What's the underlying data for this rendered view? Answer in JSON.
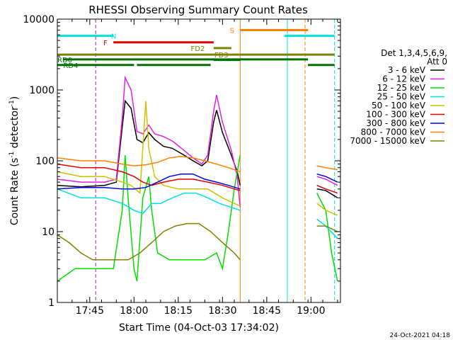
{
  "chart_data": {
    "type": "line",
    "title": "RHESSI Observing Summary Count Rates",
    "xlabel": "Start Time (04-Oct-03 17:34:02)",
    "ylabel": "Count Rate (s⁻¹ detector⁻¹)",
    "ylabel_parts": [
      "Count Rate (s",
      "-1",
      " detector",
      "-1",
      ")"
    ],
    "y_scale": "log",
    "ylim": [
      1,
      10000
    ],
    "xlim": [
      "17:34",
      "19:10"
    ],
    "x_ticks": [
      "17:45",
      "18:00",
      "18:15",
      "18:30",
      "18:45",
      "19:00"
    ],
    "y_ticks": [
      "1",
      "10",
      "100",
      "1000",
      "10000"
    ],
    "timestamp": "24-Oct-2021 04:18",
    "legend_position": "right",
    "legend_header": [
      "Det 1,3,4,5,6,9,",
      "Att 0"
    ],
    "series": [
      {
        "name": "3 - 6 keV",
        "color": "#000000",
        "points": [
          [
            "17:34",
            45
          ],
          [
            "17:42",
            43
          ],
          [
            "17:50",
            45
          ],
          [
            "17:54",
            50
          ],
          [
            "17:56",
            300
          ],
          [
            "17:57",
            700
          ],
          [
            "17:59",
            550
          ],
          [
            "18:01",
            200
          ],
          [
            "18:03",
            180
          ],
          [
            "18:05",
            250
          ],
          [
            "18:07",
            200
          ],
          [
            "18:10",
            160
          ],
          [
            "18:13",
            150
          ],
          [
            "18:17",
            120
          ],
          [
            "18:20",
            100
          ],
          [
            "18:23",
            85
          ],
          [
            "18:25",
            100
          ],
          [
            "18:27",
            350
          ],
          [
            "18:28",
            520
          ],
          [
            "18:30",
            250
          ],
          [
            "18:33",
            120
          ],
          [
            "18:35",
            70
          ],
          [
            "18:36",
            45
          ]
        ],
        "points2": [
          [
            "19:02",
            40
          ],
          [
            "19:05",
            38
          ],
          [
            "19:09",
            30
          ]
        ]
      },
      {
        "name": "6 - 12 keV",
        "color": "#e020e0",
        "points": [
          [
            "17:34",
            55
          ],
          [
            "17:42",
            50
          ],
          [
            "17:50",
            50
          ],
          [
            "17:54",
            55
          ],
          [
            "17:56",
            400
          ],
          [
            "17:57",
            1500
          ],
          [
            "17:59",
            1000
          ],
          [
            "18:01",
            260
          ],
          [
            "18:03",
            240
          ],
          [
            "18:05",
            320
          ],
          [
            "18:07",
            240
          ],
          [
            "18:10",
            220
          ],
          [
            "18:13",
            190
          ],
          [
            "18:17",
            140
          ],
          [
            "18:20",
            110
          ],
          [
            "18:23",
            90
          ],
          [
            "18:25",
            120
          ],
          [
            "18:27",
            500
          ],
          [
            "18:28",
            850
          ],
          [
            "18:30",
            350
          ],
          [
            "18:33",
            140
          ],
          [
            "18:35",
            60
          ],
          [
            "18:36",
            22
          ]
        ],
        "points2": [
          [
            "19:02",
            60
          ],
          [
            "19:05",
            55
          ],
          [
            "19:09",
            45
          ]
        ]
      },
      {
        "name": "12 - 25 keV",
        "color": "#00e000",
        "points": [
          [
            "17:34",
            2
          ],
          [
            "17:40",
            3
          ],
          [
            "17:46",
            3
          ],
          [
            "17:50",
            3
          ],
          [
            "17:53",
            3
          ],
          [
            "17:56",
            20
          ],
          [
            "17:57",
            120
          ],
          [
            "17:58",
            30
          ],
          [
            "18:00",
            3
          ],
          [
            "18:01",
            2
          ],
          [
            "18:03",
            30
          ],
          [
            "18:05",
            60
          ],
          [
            "18:06",
            20
          ],
          [
            "18:08",
            5
          ],
          [
            "18:12",
            4
          ],
          [
            "18:18",
            4
          ],
          [
            "18:24",
            4
          ],
          [
            "18:28",
            5
          ],
          [
            "18:30",
            3
          ],
          [
            "18:32",
            10
          ],
          [
            "18:34",
            40
          ],
          [
            "18:36",
            120
          ]
        ],
        "points2": [
          [
            "19:02",
            35
          ],
          [
            "19:05",
            20
          ],
          [
            "19:07",
            5
          ],
          [
            "19:09",
            2
          ]
        ]
      },
      {
        "name": "25 - 50 keV",
        "color": "#00e0e0",
        "points": [
          [
            "17:34",
            40
          ],
          [
            "17:42",
            30
          ],
          [
            "17:50",
            30
          ],
          [
            "17:56",
            25
          ],
          [
            "18:00",
            20
          ],
          [
            "18:03",
            18
          ],
          [
            "18:06",
            25
          ],
          [
            "18:09",
            25
          ],
          [
            "18:13",
            30
          ],
          [
            "18:17",
            35
          ],
          [
            "18:21",
            35
          ],
          [
            "18:25",
            30
          ],
          [
            "18:29",
            25
          ],
          [
            "18:33",
            22
          ],
          [
            "18:36",
            20
          ]
        ],
        "points2": [
          [
            "19:02",
            15
          ],
          [
            "19:05",
            12
          ],
          [
            "19:09",
            8
          ]
        ]
      },
      {
        "name": "50 - 100 keV",
        "color": "#d0c000",
        "points": [
          [
            "17:34",
            70
          ],
          [
            "17:42",
            60
          ],
          [
            "17:50",
            60
          ],
          [
            "17:56",
            50
          ],
          [
            "17:59",
            45
          ],
          [
            "18:02",
            35
          ],
          [
            "18:04",
            700
          ],
          [
            "18:05",
            150
          ],
          [
            "18:07",
            60
          ],
          [
            "18:10",
            45
          ],
          [
            "18:15",
            40
          ],
          [
            "18:20",
            40
          ],
          [
            "18:25",
            40
          ],
          [
            "18:30",
            30
          ],
          [
            "18:34",
            25
          ],
          [
            "18:36",
            23
          ]
        ],
        "points2": [
          [
            "19:02",
            25
          ],
          [
            "19:05",
            20
          ],
          [
            "19:09",
            17
          ]
        ]
      },
      {
        "name": "100 - 300 keV",
        "color": "#e00000",
        "points": [
          [
            "17:34",
            90
          ],
          [
            "17:42",
            80
          ],
          [
            "17:50",
            80
          ],
          [
            "17:56",
            70
          ],
          [
            "18:00",
            60
          ],
          [
            "18:03",
            50
          ],
          [
            "18:06",
            45
          ],
          [
            "18:10",
            50
          ],
          [
            "18:15",
            55
          ],
          [
            "18:20",
            55
          ],
          [
            "18:25",
            50
          ],
          [
            "18:30",
            45
          ],
          [
            "18:34",
            40
          ],
          [
            "18:36",
            38
          ]
        ],
        "points2": [
          [
            "19:02",
            45
          ],
          [
            "19:05",
            40
          ],
          [
            "19:09",
            35
          ]
        ]
      },
      {
        "name": "300 - 800 keV",
        "color": "#0000e0",
        "points": [
          [
            "17:34",
            40
          ],
          [
            "17:42",
            42
          ],
          [
            "17:50",
            42
          ],
          [
            "17:56",
            40
          ],
          [
            "18:00",
            40
          ],
          [
            "18:04",
            42
          ],
          [
            "18:08",
            50
          ],
          [
            "18:12",
            60
          ],
          [
            "18:16",
            65
          ],
          [
            "18:20",
            65
          ],
          [
            "18:24",
            55
          ],
          [
            "18:28",
            50
          ],
          [
            "18:32",
            45
          ],
          [
            "18:36",
            40
          ]
        ],
        "points2": [
          [
            "19:02",
            65
          ],
          [
            "19:05",
            60
          ],
          [
            "19:09",
            50
          ]
        ]
      },
      {
        "name": "800 - 7000 keV",
        "color": "#ff8000",
        "points": [
          [
            "17:34",
            110
          ],
          [
            "17:42",
            100
          ],
          [
            "17:50",
            100
          ],
          [
            "17:56",
            90
          ],
          [
            "18:00",
            85
          ],
          [
            "18:04",
            88
          ],
          [
            "18:08",
            95
          ],
          [
            "18:12",
            110
          ],
          [
            "18:16",
            115
          ],
          [
            "18:20",
            110
          ],
          [
            "18:24",
            100
          ],
          [
            "18:28",
            90
          ],
          [
            "18:32",
            80
          ],
          [
            "18:36",
            70
          ]
        ],
        "points2": [
          [
            "19:02",
            85
          ],
          [
            "19:05",
            80
          ],
          [
            "19:09",
            75
          ]
        ]
      },
      {
        "name": "7000 - 15000 keV",
        "color": "#808000",
        "points": [
          [
            "17:34",
            9
          ],
          [
            "17:38",
            7
          ],
          [
            "17:42",
            5
          ],
          [
            "17:46",
            4
          ],
          [
            "17:50",
            4
          ],
          [
            "17:54",
            4
          ],
          [
            "17:58",
            4
          ],
          [
            "18:02",
            5
          ],
          [
            "18:06",
            7
          ],
          [
            "18:10",
            10
          ],
          [
            "18:14",
            12
          ],
          [
            "18:18",
            13
          ],
          [
            "18:22",
            13
          ],
          [
            "18:26",
            10
          ],
          [
            "18:30",
            7
          ],
          [
            "18:34",
            5
          ],
          [
            "18:36",
            4
          ]
        ],
        "points2": [
          [
            "19:02",
            12
          ],
          [
            "19:05",
            12
          ],
          [
            "19:09",
            10
          ]
        ]
      }
    ],
    "flag_bars": [
      {
        "label": "N",
        "color": "#00e0e0",
        "start": "17:34",
        "end": "17:53",
        "value": 5800,
        "label_at": "17:54"
      },
      {
        "label": "",
        "color": "#00e0e0",
        "start": "18:51",
        "end": "19:08",
        "value": 5800
      },
      {
        "label": "F",
        "color": "#e00000",
        "start": "17:53",
        "end": "18:27",
        "value": 4700,
        "label_at": "17:51"
      },
      {
        "label": "S",
        "color": "#ff8000",
        "start": "18:36",
        "end": "18:59",
        "value": 7000,
        "label_at": "18:34"
      },
      {
        "label": "FD2",
        "color": "#808000",
        "start": "18:27",
        "end": "18:33",
        "value": 3900,
        "label_at": "18:24"
      },
      {
        "label": "FD3",
        "color": "#808000",
        "start": "17:34",
        "end": "19:08",
        "value": 3150,
        "label_at": "18:32"
      },
      {
        "label": "RD0",
        "color": "#007000",
        "start": "17:36",
        "end": "18:59",
        "value": 2700,
        "label_at": "17:34"
      },
      {
        "label": "RD4",
        "color": "#007000",
        "start": "17:34",
        "end": "18:00",
        "value": 2250,
        "label_at": "17:36"
      },
      {
        "label": "",
        "color": "#007000",
        "start": "18:01",
        "end": "18:26",
        "value": 2250
      },
      {
        "label": "",
        "color": "#007000",
        "start": "18:27",
        "end": "18:36",
        "value": 2650
      },
      {
        "label": "",
        "color": "#007000",
        "start": "18:59",
        "end": "19:08",
        "value": 2250
      }
    ],
    "vertical_markers": [
      {
        "time": "17:34",
        "color": "#00e0e0",
        "style": "solid"
      },
      {
        "time": "17:47",
        "color": "#00e0e0",
        "style": "dashed"
      },
      {
        "time": "17:47",
        "color": "#e020e0",
        "style": "dashed"
      },
      {
        "time": "18:36",
        "color": "#ff8000",
        "style": "solid"
      },
      {
        "time": "18:52",
        "color": "#00e0e0",
        "style": "solid"
      },
      {
        "time": "18:58",
        "color": "#ff8000",
        "style": "dashed"
      },
      {
        "time": "19:08",
        "color": "#00e0e0",
        "style": "dashed"
      }
    ]
  }
}
